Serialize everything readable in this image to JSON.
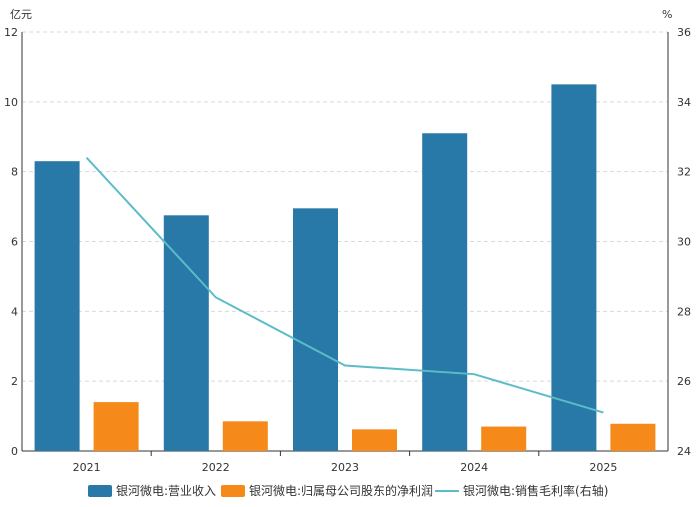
{
  "chart_data": {
    "type": "bar",
    "categories": [
      "2021",
      "2022",
      "2023",
      "2024",
      "2025"
    ],
    "y_left_unit": "亿元",
    "y_right_unit": "%",
    "y_left_ticks": [
      "0",
      "2",
      "4",
      "6",
      "8",
      "10",
      "12"
    ],
    "y_right_ticks": [
      "24",
      "26",
      "28",
      "30",
      "32",
      "34",
      "36"
    ],
    "ylim_left": [
      0,
      12
    ],
    "ylim_right": [
      24,
      36
    ],
    "grid": true,
    "legend_position": "bottom",
    "series": [
      {
        "name": "银河微电:营业收入",
        "type": "bar",
        "axis": "left",
        "color": "#2878a8",
        "values": [
          8.3,
          6.75,
          6.95,
          9.1,
          10.5
        ]
      },
      {
        "name": "银河微电:归属母公司股东的净利润",
        "type": "bar",
        "axis": "left",
        "color": "#f5891a",
        "values": [
          1.4,
          0.85,
          0.62,
          0.7,
          0.78
        ]
      },
      {
        "name": "银河微电:销售毛利率(右轴)",
        "type": "line",
        "axis": "right",
        "color": "#5bbcc8",
        "values": [
          32.4,
          28.4,
          26.45,
          26.2,
          25.1
        ]
      }
    ]
  }
}
